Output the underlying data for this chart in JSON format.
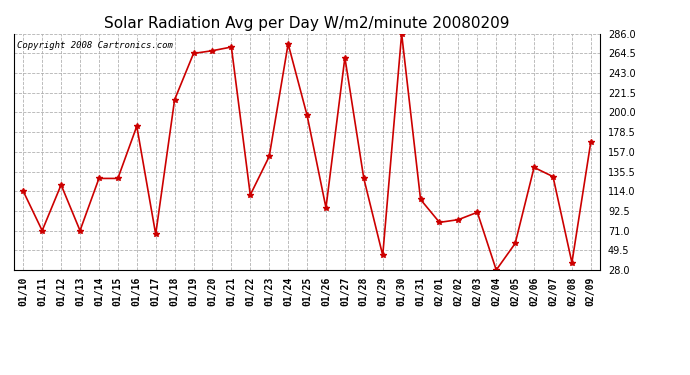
{
  "title": "Solar Radiation Avg per Day W/m2/minute 20080209",
  "copyright": "Copyright 2008 Cartronics.com",
  "labels": [
    "01/10",
    "01/11",
    "01/12",
    "01/13",
    "01/14",
    "01/15",
    "01/16",
    "01/17",
    "01/18",
    "01/19",
    "01/20",
    "01/21",
    "01/22",
    "01/23",
    "01/24",
    "01/25",
    "01/26",
    "01/27",
    "01/28",
    "01/29",
    "01/30",
    "01/31",
    "02/01",
    "02/02",
    "02/03",
    "02/04",
    "02/05",
    "02/06",
    "02/07",
    "02/08",
    "02/09"
  ],
  "values": [
    114.0,
    71.0,
    121.0,
    71.0,
    128.0,
    128.0,
    185.0,
    67.0,
    214.0,
    264.5,
    267.5,
    271.5,
    110.0,
    152.0,
    275.0,
    197.0,
    96.0,
    260.0,
    128.0,
    44.0,
    286.0,
    105.0,
    80.0,
    83.0,
    91.0,
    28.0,
    57.0,
    140.0,
    130.0,
    36.0,
    168.0
  ],
  "line_color": "#cc0000",
  "marker": "*",
  "marker_size": 4,
  "background_color": "#ffffff",
  "grid_color": "#aaaaaa",
  "ylim": [
    28.0,
    286.0
  ],
  "yticks": [
    28.0,
    49.5,
    71.0,
    92.5,
    114.0,
    135.5,
    157.0,
    178.5,
    200.0,
    221.5,
    243.0,
    264.5,
    286.0
  ],
  "title_fontsize": 11,
  "tick_fontsize": 7,
  "copyright_fontsize": 6.5
}
